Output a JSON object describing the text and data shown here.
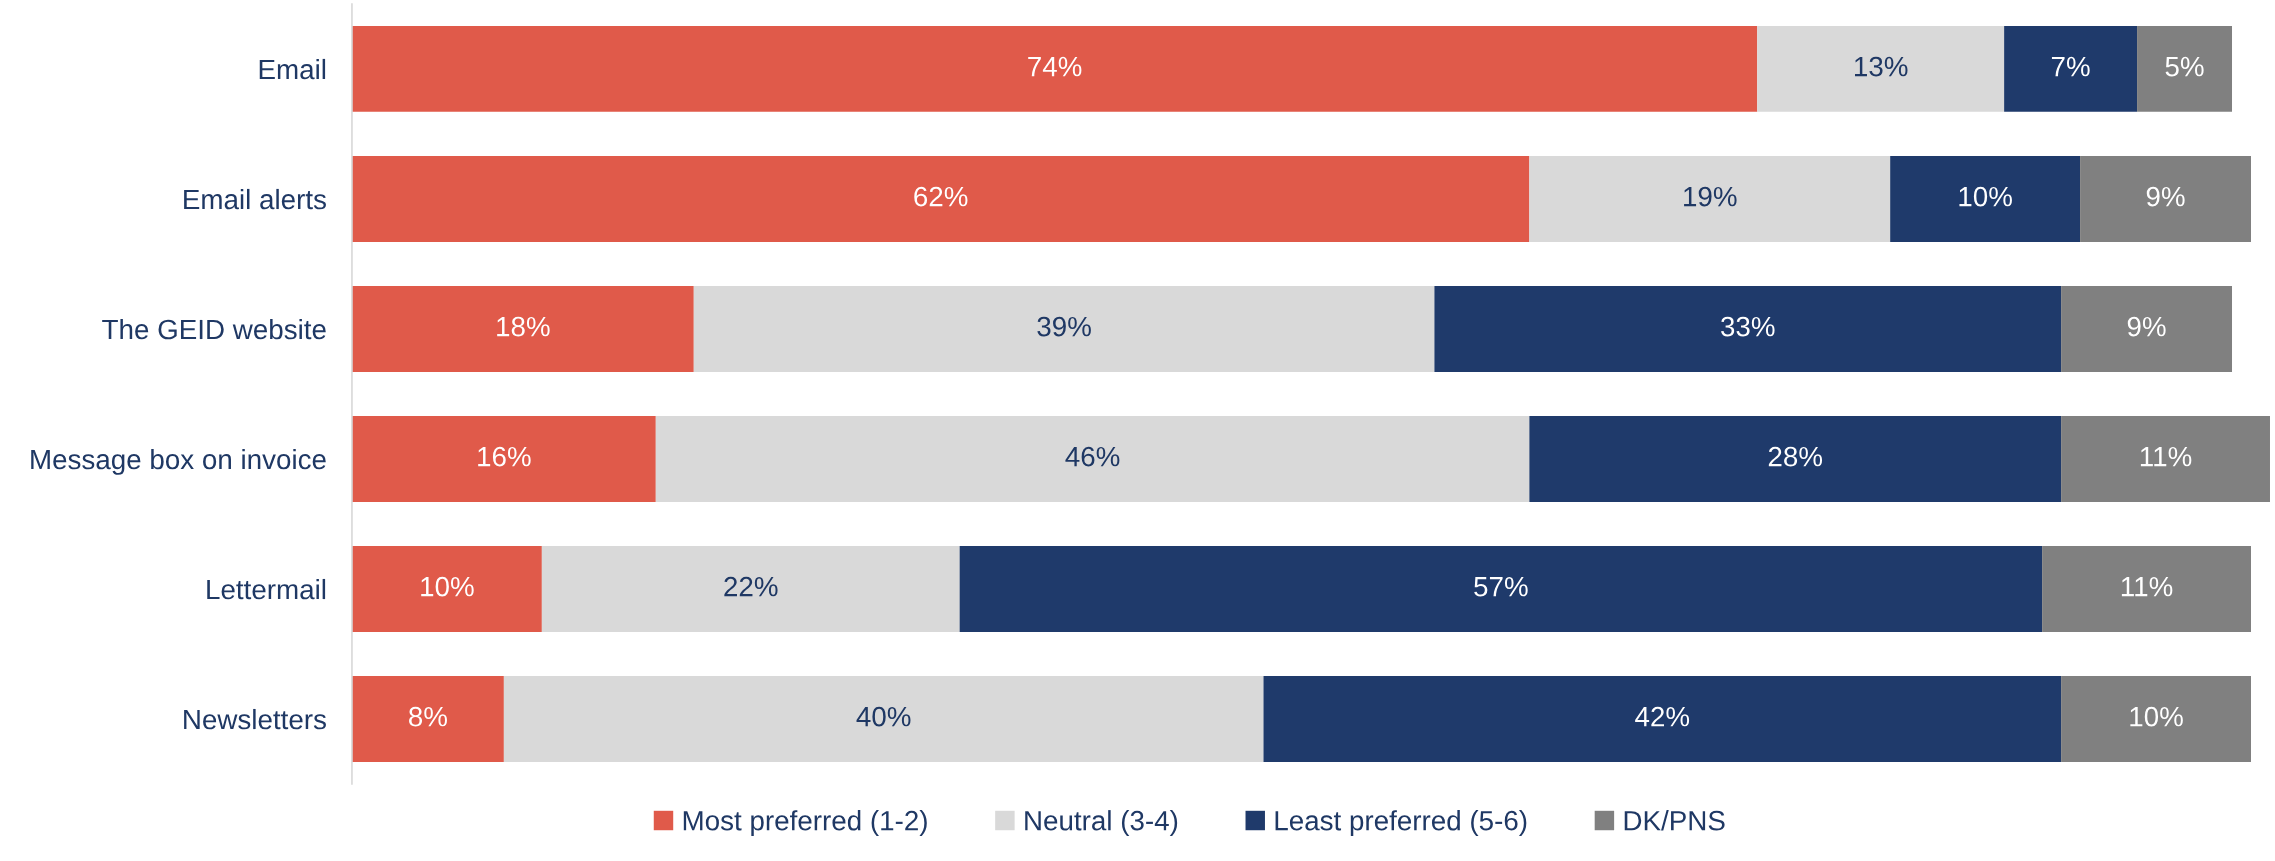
{
  "chart_data": {
    "type": "bar",
    "orientation": "horizontal",
    "stacked": true,
    "legend": "bottom",
    "grid": false,
    "tick_labels": "y",
    "categories": [
      "Email",
      "Email alerts",
      "The GEID website",
      "Message box on invoice",
      "Lettermail",
      "Newsletters"
    ],
    "series": [
      {
        "name": "Most preferred (1-2)",
        "color": "#e05a4a",
        "values": [
          74,
          62,
          18,
          16,
          10,
          8
        ],
        "value_labels": [
          "74%",
          "62%",
          "18%",
          "16%",
          "10%",
          "8%"
        ]
      },
      {
        "name": "Neutral (3-4)",
        "color": "#d9d9d9",
        "values": [
          13,
          19,
          39,
          46,
          22,
          40
        ],
        "value_labels": [
          "13%",
          "19%",
          "39%",
          "46%",
          "22%",
          "40%"
        ]
      },
      {
        "name": "Least preferred (5-6)",
        "color": "#1f3a6b",
        "values": [
          7,
          10,
          33,
          28,
          57,
          42
        ],
        "value_labels": [
          "7%",
          "10%",
          "33%",
          "28%",
          "57%",
          "42%"
        ]
      },
      {
        "name": "DK/PNS",
        "color": "#808080",
        "values": [
          5,
          9,
          9,
          11,
          11,
          10
        ],
        "value_labels": [
          "5%",
          "9%",
          "9%",
          "11%",
          "11%",
          "10%"
        ]
      }
    ]
  }
}
